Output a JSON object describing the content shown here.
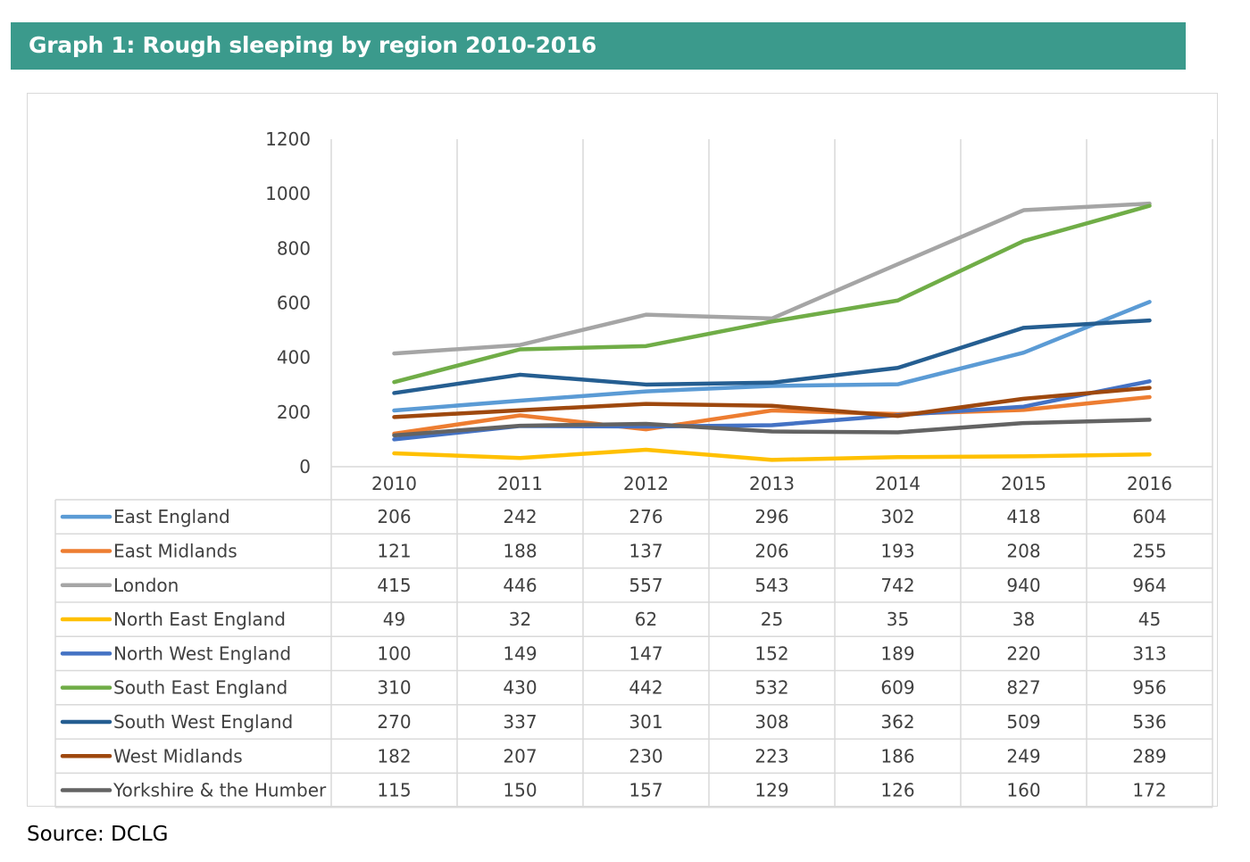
{
  "header": {
    "title": "Graph 1: Rough sleeping by region 2010-2016"
  },
  "source": "Source: DCLG",
  "chart_data": {
    "type": "line",
    "title": "Graph 1: Rough sleeping by region 2010-2016",
    "x": [
      "2010",
      "2011",
      "2012",
      "2013",
      "2014",
      "2015",
      "2016"
    ],
    "ylim": [
      0,
      1200
    ],
    "yticks": [
      0,
      200,
      400,
      600,
      800,
      1000,
      1200
    ],
    "grid": "vertical",
    "legend": "data-table-below",
    "series": [
      {
        "name": "East England",
        "color": "#5b9bd5",
        "values": [
          206,
          242,
          276,
          296,
          302,
          418,
          604
        ]
      },
      {
        "name": "East Midlands",
        "color": "#ed7d31",
        "values": [
          121,
          188,
          137,
          206,
          193,
          208,
          255
        ]
      },
      {
        "name": "London",
        "color": "#a5a5a5",
        "values": [
          415,
          446,
          557,
          543,
          742,
          940,
          964
        ]
      },
      {
        "name": "North East England",
        "color": "#ffc000",
        "values": [
          49,
          32,
          62,
          25,
          35,
          38,
          45
        ]
      },
      {
        "name": "North West England",
        "color": "#4472c4",
        "values": [
          100,
          149,
          147,
          152,
          189,
          220,
          313
        ]
      },
      {
        "name": "South East England",
        "color": "#70ad47",
        "values": [
          310,
          430,
          442,
          532,
          609,
          827,
          956
        ]
      },
      {
        "name": "South West England",
        "color": "#255e91",
        "values": [
          270,
          337,
          301,
          308,
          362,
          509,
          536
        ]
      },
      {
        "name": "West Midlands",
        "color": "#9e480e",
        "values": [
          182,
          207,
          230,
          223,
          186,
          249,
          289
        ]
      },
      {
        "name": "Yorkshire & the Humber",
        "color": "#636363",
        "values": [
          115,
          150,
          157,
          129,
          126,
          160,
          172
        ]
      }
    ]
  }
}
